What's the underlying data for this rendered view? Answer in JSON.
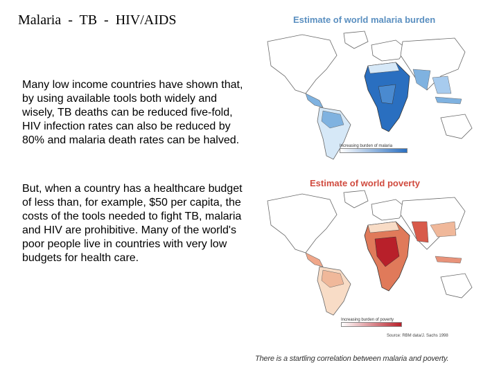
{
  "slide": {
    "title": "Malaria  -  TB  -  HIV/AIDS",
    "paragraphs": [
      "Many low income countries have shown that, by using available tools both widely and wisely, TB deaths can be reduced five-fold, HIV infection rates can also be reduced by 80% and malaria death rates can be halved.",
      "But, when a country has a healthcare budget of less than, for example, $50 per capita, the costs of the tools needed to fight TB, malaria and HIV are prohibitive. Many of the world's poor people live in countries with very low budgets for health care."
    ]
  },
  "maps": {
    "malaria": {
      "title": "Estimate of world malaria burden",
      "legend": "Increasing burden of malaria",
      "color_light": "#d6e8f7",
      "color_mid": "#7fb2e0",
      "color_dark": "#2a6fc0"
    },
    "poverty": {
      "title": "Estimate of world poverty",
      "legend": "Increasing burden of poverty",
      "source": "Source: RBM data/J. Sachs 1998",
      "color_light": "#f8dcc6",
      "color_mid": "#e07a5a",
      "color_dark": "#b8202a"
    },
    "caption": "There is a startling correlation between malaria and poverty."
  }
}
